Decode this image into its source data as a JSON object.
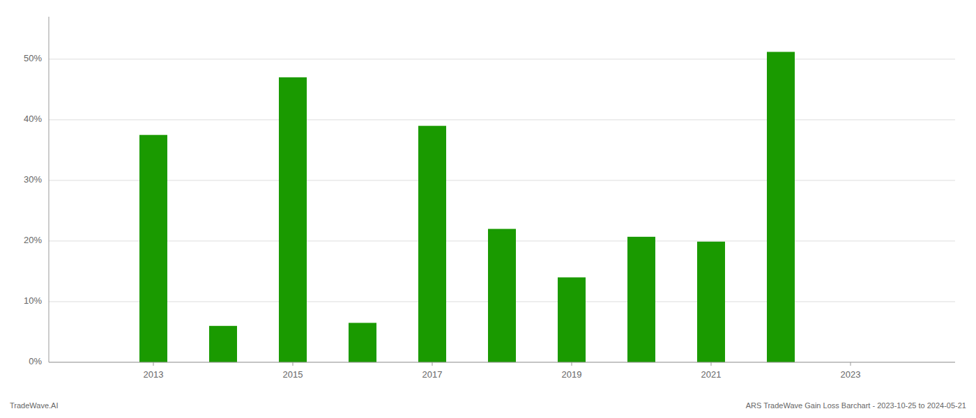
{
  "chart_data": {
    "type": "bar",
    "x": [
      2013,
      2014,
      2015,
      2016,
      2017,
      2018,
      2019,
      2020,
      2021,
      2022
    ],
    "values": [
      37.5,
      6.0,
      47.0,
      6.5,
      39.0,
      22.0,
      14.0,
      20.7,
      19.9,
      51.2
    ],
    "color": "#1a9a00",
    "xlim": [
      2011.5,
      2024.5
    ],
    "xticks": [
      2013,
      2015,
      2017,
      2019,
      2021,
      2023
    ],
    "ylim": [
      0,
      57
    ],
    "yticks": [
      {
        "value": 0,
        "label": "0%"
      },
      {
        "value": 10,
        "label": "10%"
      },
      {
        "value": 20,
        "label": "20%"
      },
      {
        "value": 30,
        "label": "30%"
      },
      {
        "value": 40,
        "label": "40%"
      },
      {
        "value": 50,
        "label": "50%"
      }
    ],
    "grid": true,
    "annotations": [
      "TradeWave.AI",
      "ARS TradeWave Gain Loss Barchart - 2023-10-25 to 2024-05-21"
    ]
  }
}
